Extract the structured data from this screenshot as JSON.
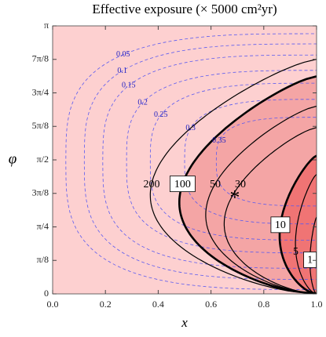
{
  "chart_data": {
    "type": "contour",
    "title": "Effective exposure (× 5000 cm²yr)",
    "x_label": "x",
    "y_label": "φ",
    "xlim": [
      0,
      1
    ],
    "ylim": [
      0,
      3.1416
    ],
    "xticks": [
      {
        "value": 0,
        "label": "0.0"
      },
      0.2,
      0.4,
      0.6,
      0.8,
      {
        "value": 1,
        "label": "1.0"
      }
    ],
    "yticks": [
      0,
      {
        "value": 0.3927,
        "label": "π/8"
      },
      {
        "value": 0.7854,
        "label": "π/4"
      },
      {
        "value": 1.1781,
        "label": "3π/8"
      },
      {
        "value": 1.5708,
        "label": "π/2"
      },
      {
        "value": 1.9635,
        "label": "5π/8"
      },
      {
        "value": 2.3562,
        "label": "3π/4"
      },
      {
        "value": 2.7489,
        "label": "7π/8"
      },
      {
        "value": 3.1416,
        "label": "π"
      }
    ],
    "dashed_color": "#5a5af0",
    "dashed_levels": [
      0.05,
      0.1,
      0.15,
      0.2,
      0.25,
      0.3,
      0.35
    ],
    "solid_color": "#000000",
    "solid_levels": [
      {
        "level": 200,
        "thick": false,
        "boxed": false
      },
      {
        "level": 100,
        "thick": true,
        "boxed": true
      },
      {
        "level": 50,
        "thick": false,
        "boxed": false
      },
      {
        "level": 30,
        "thick": false,
        "boxed": false
      },
      {
        "level": 10,
        "thick": true,
        "boxed": true
      },
      {
        "level": 5,
        "thick": false,
        "boxed": false
      },
      {
        "level": 1,
        "thick": false,
        "boxed": true
      }
    ],
    "marker": {
      "x": 0.69,
      "y": 1.16,
      "label": "*"
    }
  }
}
